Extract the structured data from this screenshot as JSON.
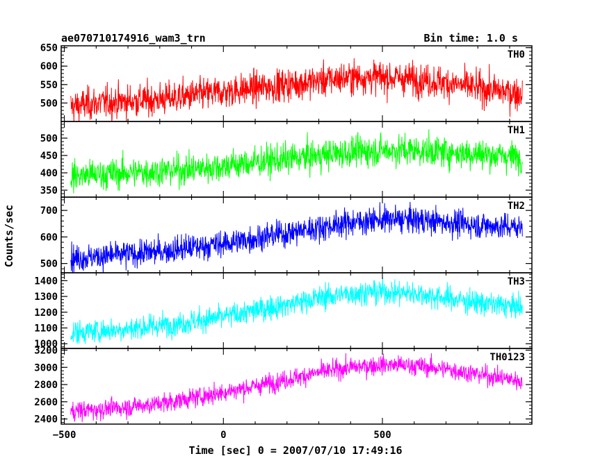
{
  "chart_data": {
    "type": "line",
    "title_left": "ae070710174916_wam3_trn",
    "title_right": "Bin time: 1.0 s",
    "xlabel": "Time [sec] 0 = 2007/07/10 17:49:16",
    "ylabel": "Counts/sec",
    "xlim": [
      -510,
      970
    ],
    "x_ticks": [
      -500,
      0,
      500
    ],
    "x_tick_labels": [
      "−500",
      "0",
      "500"
    ],
    "x_data_range": [
      -480,
      940
    ],
    "bin_time": 1.0,
    "grid": false,
    "panels": [
      {
        "name": "TH0",
        "color": "#ff0000",
        "ylim": [
          450,
          655
        ],
        "y_ticks": [
          500,
          550,
          600,
          650
        ],
        "y_tick_labels": [
          "500",
          "550",
          "600",
          "650"
        ],
        "trend": {
          "x": [
            -480,
            -400,
            -300,
            -200,
            -100,
            0,
            100,
            200,
            300,
            400,
            500,
            600,
            700,
            800,
            940
          ],
          "y": [
            490,
            500,
            505,
            510,
            520,
            530,
            540,
            550,
            560,
            570,
            570,
            565,
            555,
            540,
            525
          ]
        },
        "noise": 22
      },
      {
        "name": "TH1",
        "color": "#00ff00",
        "ylim": [
          330,
          548
        ],
        "y_ticks": [
          350,
          400,
          450,
          500
        ],
        "y_tick_labels": [
          "350",
          "400",
          "450",
          "500"
        ],
        "trend": {
          "x": [
            -480,
            -400,
            -300,
            -200,
            -100,
            0,
            100,
            200,
            300,
            400,
            500,
            600,
            700,
            800,
            940
          ],
          "y": [
            390,
            395,
            400,
            405,
            410,
            420,
            430,
            440,
            450,
            460,
            465,
            465,
            460,
            455,
            445
          ]
        },
        "noise": 22
      },
      {
        "name": "TH2",
        "color": "#0000ff",
        "ylim": [
          465,
          750
        ],
        "y_ticks": [
          500,
          600,
          700
        ],
        "y_tick_labels": [
          "500",
          "600",
          "700"
        ],
        "trend": {
          "x": [
            -480,
            -400,
            -300,
            -200,
            -100,
            0,
            100,
            200,
            300,
            400,
            500,
            600,
            700,
            800,
            940
          ],
          "y": [
            520,
            525,
            535,
            545,
            560,
            575,
            595,
            615,
            635,
            655,
            665,
            665,
            655,
            645,
            635
          ]
        },
        "noise": 25
      },
      {
        "name": "TH3",
        "color": "#00ffff",
        "ylim": [
          970,
          1450
        ],
        "y_ticks": [
          1000,
          1100,
          1200,
          1300,
          1400
        ],
        "y_tick_labels": [
          "1000",
          "1100",
          "1200",
          "1300",
          "1400"
        ],
        "trend": {
          "x": [
            -480,
            -400,
            -300,
            -200,
            -100,
            0,
            100,
            200,
            300,
            400,
            500,
            600,
            700,
            800,
            940
          ],
          "y": [
            1070,
            1080,
            1095,
            1115,
            1140,
            1170,
            1210,
            1250,
            1290,
            1320,
            1330,
            1320,
            1290,
            1260,
            1230
          ]
        },
        "noise": 38
      },
      {
        "name": "TH0123",
        "color": "#ff00ff",
        "ylim": [
          2340,
          3220
        ],
        "y_ticks": [
          2400,
          2600,
          2800,
          3000,
          3200
        ],
        "y_tick_labels": [
          "2400",
          "2600",
          "2800",
          "3000",
          "3200"
        ],
        "trend": {
          "x": [
            -480,
            -400,
            -300,
            -200,
            -100,
            0,
            100,
            200,
            300,
            400,
            500,
            600,
            700,
            800,
            940
          ],
          "y": [
            2490,
            2510,
            2540,
            2580,
            2640,
            2710,
            2780,
            2860,
            2940,
            3000,
            3030,
            3020,
            2980,
            2920,
            2840
          ]
        },
        "noise": 55
      }
    ]
  }
}
